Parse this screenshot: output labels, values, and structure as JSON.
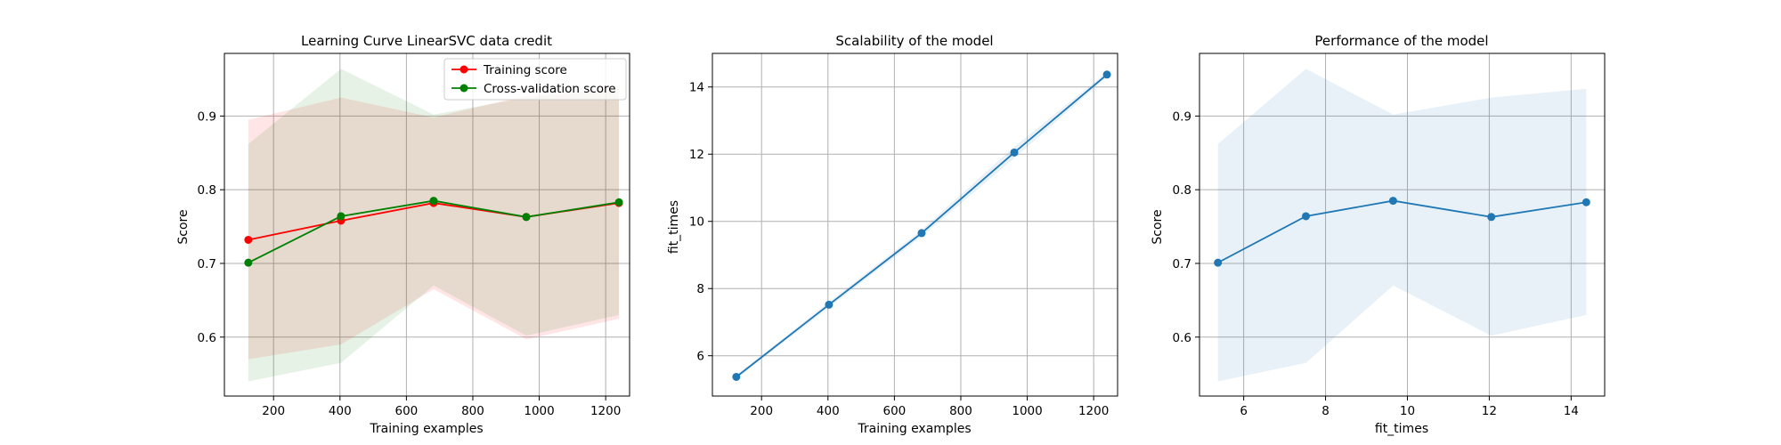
{
  "chart_data": [
    {
      "type": "line",
      "title": "Learning Curve LinearSVC data credit",
      "xlabel": "Training examples",
      "ylabel": "Score",
      "xlim": [
        52,
        1272
      ],
      "ylim": [
        0.52,
        0.985
      ],
      "xticks": [
        200,
        400,
        600,
        800,
        1000,
        1200
      ],
      "yticks": [
        0.6,
        0.7,
        0.8,
        0.9
      ],
      "ytick_labels": [
        "0.6",
        "0.7",
        "0.8",
        "0.9"
      ],
      "grid": true,
      "legend": "top-right",
      "x": [
        124,
        403,
        682,
        961,
        1240
      ],
      "series": [
        {
          "name": "Training score",
          "color": "#ff0000",
          "values": [
            0.732,
            0.758,
            0.782,
            0.763,
            0.782
          ],
          "band_low": [
            0.57,
            0.59,
            0.665,
            0.597,
            0.625
          ],
          "band_high": [
            0.895,
            0.925,
            0.898,
            0.928,
            0.938
          ]
        },
        {
          "name": "Cross-validation score",
          "color": "#008000",
          "values": [
            0.701,
            0.764,
            0.785,
            0.763,
            0.783
          ],
          "band_low": [
            0.54,
            0.565,
            0.67,
            0.602,
            0.63
          ],
          "band_high": [
            0.862,
            0.964,
            0.902,
            0.925,
            0.937
          ]
        }
      ]
    },
    {
      "type": "line",
      "title": "Scalability of the model",
      "xlabel": "Training examples",
      "ylabel": "fit_times",
      "xlim": [
        52,
        1272
      ],
      "ylim": [
        4.8,
        15.0
      ],
      "xticks": [
        200,
        400,
        600,
        800,
        1000,
        1200
      ],
      "yticks": [
        6,
        8,
        10,
        12,
        14
      ],
      "ytick_labels": [
        "6",
        "8",
        "10",
        "12",
        "14"
      ],
      "grid": true,
      "x": [
        124,
        403,
        682,
        961,
        1240
      ],
      "series": [
        {
          "color": "#1f77b4",
          "values": [
            5.37,
            7.52,
            9.65,
            12.05,
            14.37
          ],
          "band_low": [
            5.32,
            7.44,
            9.55,
            11.88,
            14.3
          ],
          "band_high": [
            5.42,
            7.6,
            9.75,
            12.22,
            14.44
          ]
        }
      ]
    },
    {
      "type": "line",
      "title": "Performance of the model",
      "xlabel": "fit_times",
      "ylabel": "Score",
      "xlim": [
        4.92,
        14.82
      ],
      "ylim": [
        0.52,
        0.985
      ],
      "xticks": [
        6,
        8,
        10,
        12,
        14
      ],
      "yticks": [
        0.6,
        0.7,
        0.8,
        0.9
      ],
      "ytick_labels": [
        "0.6",
        "0.7",
        "0.8",
        "0.9"
      ],
      "grid": true,
      "x": [
        5.37,
        7.52,
        9.65,
        12.05,
        14.37
      ],
      "series": [
        {
          "color": "#1f77b4",
          "values": [
            0.701,
            0.764,
            0.785,
            0.763,
            0.783
          ],
          "band_low": [
            0.54,
            0.565,
            0.67,
            0.602,
            0.63
          ],
          "band_high": [
            0.862,
            0.964,
            0.902,
            0.925,
            0.937
          ]
        }
      ]
    }
  ]
}
